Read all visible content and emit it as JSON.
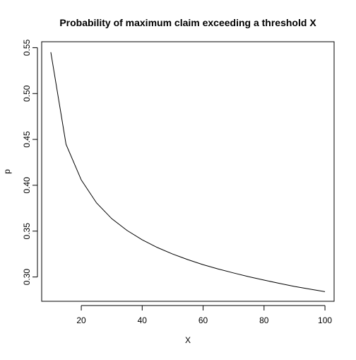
{
  "chart_data": {
    "type": "line",
    "title": "Probability of maximum claim exceeding a threshold X",
    "xlabel": "X",
    "ylabel": "p",
    "xlim": [
      7,
      103
    ],
    "ylim": [
      0.2735,
      0.5565
    ],
    "xticks": [
      20,
      40,
      60,
      80,
      100
    ],
    "yticks": [
      0.3,
      0.35,
      0.4,
      0.45,
      0.5,
      0.55
    ],
    "grid": false,
    "series": [
      {
        "color": "#000000",
        "x": [
          10,
          15,
          20,
          25,
          30,
          35,
          40,
          45,
          50,
          55,
          60,
          65,
          70,
          75,
          80,
          85,
          90,
          95,
          100
        ],
        "y": [
          0.5451,
          0.4446,
          0.4058,
          0.3808,
          0.3636,
          0.3508,
          0.3405,
          0.3321,
          0.325,
          0.3189,
          0.3134,
          0.3087,
          0.3044,
          0.3003,
          0.2966,
          0.2931,
          0.2897,
          0.2868,
          0.284
        ]
      }
    ]
  }
}
